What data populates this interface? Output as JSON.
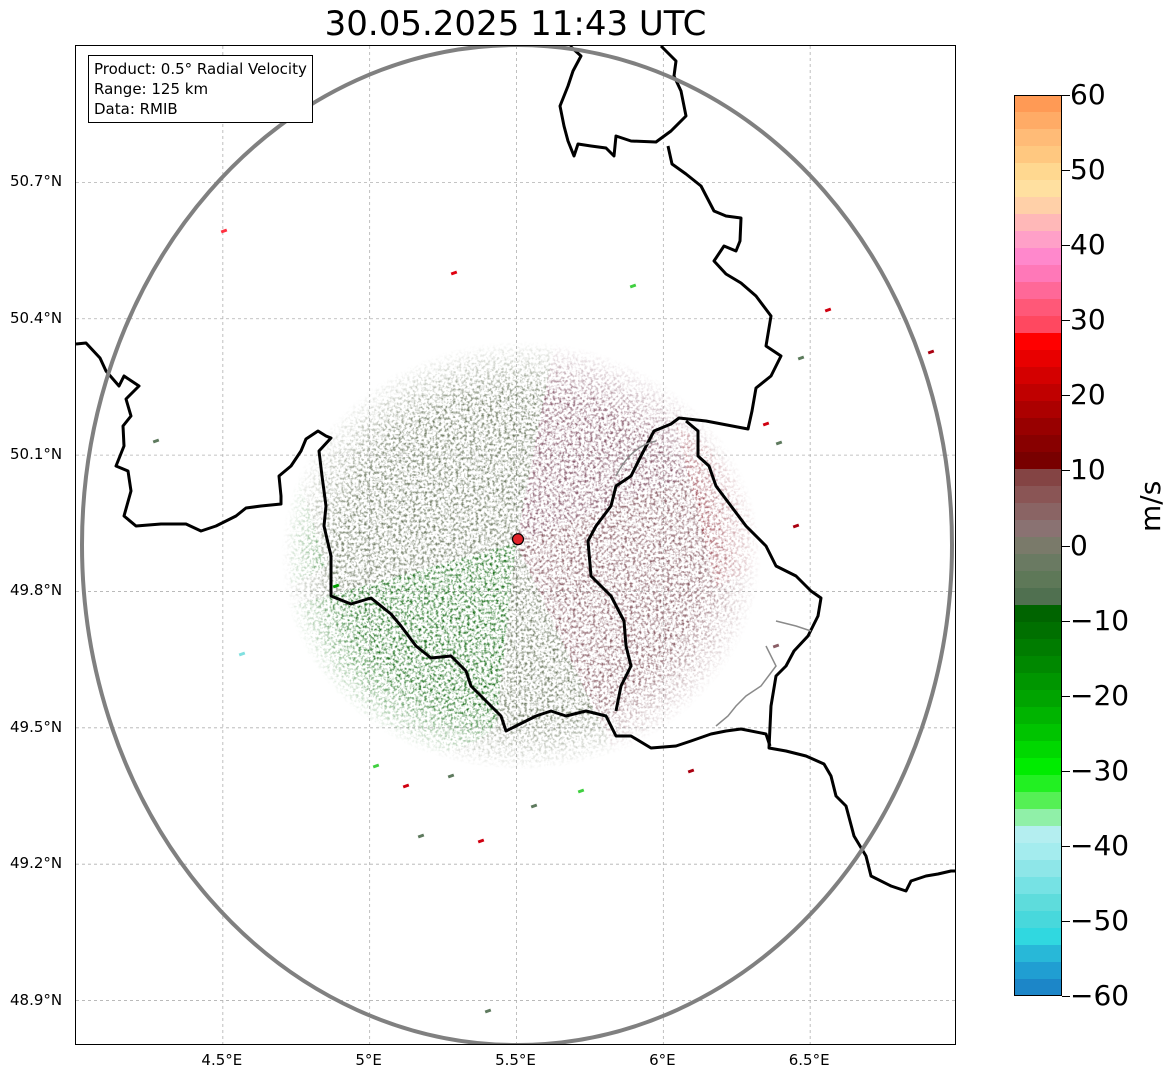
{
  "title": "30.05.2025 11:43 UTC",
  "info": {
    "product": "Product: 0.5° Radial Velocity",
    "range": "Range: 125 km",
    "data": "Data: RMIB"
  },
  "map": {
    "lon_range": [
      4.0,
      7.0
    ],
    "lat_range": [
      48.8,
      51.0
    ],
    "lon_ticks": [
      {
        "value": 4.5,
        "label": "4.5°E"
      },
      {
        "value": 5.0,
        "label": "5°E"
      },
      {
        "value": 5.5,
        "label": "5.5°E"
      },
      {
        "value": 6.0,
        "label": "6°E"
      },
      {
        "value": 6.5,
        "label": "6.5°E"
      }
    ],
    "lat_ticks": [
      {
        "value": 50.7,
        "label": "50.7°N"
      },
      {
        "value": 50.4,
        "label": "50.4°N"
      },
      {
        "value": 50.1,
        "label": "50.1°N"
      },
      {
        "value": 49.8,
        "label": "49.8°N"
      },
      {
        "value": 49.5,
        "label": "49.5°N"
      },
      {
        "value": 49.2,
        "label": "49.2°N"
      },
      {
        "value": 48.9,
        "label": "48.9°N"
      }
    ],
    "radar_site": {
      "lon": 5.505,
      "lat": 49.915
    },
    "range_ring_color": "#808080",
    "grid": true
  },
  "colorbar": {
    "unit": "m/s",
    "min": -60,
    "max": 60,
    "ticks": [
      {
        "value": 60,
        "label": "60"
      },
      {
        "value": 50,
        "label": "50"
      },
      {
        "value": 40,
        "label": "40"
      },
      {
        "value": 30,
        "label": "30"
      },
      {
        "value": 20,
        "label": "20"
      },
      {
        "value": 10,
        "label": "10"
      },
      {
        "value": 0,
        "label": "0"
      },
      {
        "value": -10,
        "label": "−10"
      },
      {
        "value": -20,
        "label": "−20"
      },
      {
        "value": -30,
        "label": "−30"
      },
      {
        "value": -40,
        "label": "−40"
      },
      {
        "value": -50,
        "label": "−50"
      },
      {
        "value": -60,
        "label": "−60"
      }
    ],
    "colors_top_to_bottom": [
      "#ff9a55",
      "#ffab66",
      "#ffbb77",
      "#ffc880",
      "#ffd890",
      "#ffe0a0",
      "#ffd0a8",
      "#ffb8b8",
      "#ffa0c8",
      "#ff88cc",
      "#ff78b8",
      "#ff6898",
      "#ff5878",
      "#ff4860",
      "#ff0000",
      "#e80000",
      "#d40000",
      "#c00000",
      "#ac0000",
      "#980000",
      "#880000",
      "#780000",
      "#844444",
      "#8a5555",
      "#8a6464",
      "#8a7272",
      "#7a7a6a",
      "#6a7a62",
      "#5e7858",
      "#507050",
      "#006400",
      "#007000",
      "#007c00",
      "#008800",
      "#009600",
      "#00a400",
      "#00b400",
      "#00c400",
      "#00d800",
      "#00ec00",
      "#22f022",
      "#55f055",
      "#90f0a8",
      "#b4eef0",
      "#a4ecee",
      "#8ee6e8",
      "#76e2e4",
      "#5edcdc",
      "#48d8dc",
      "#30d8e0",
      "#28b8d8",
      "#209ed2",
      "#1c86c8"
    ]
  }
}
